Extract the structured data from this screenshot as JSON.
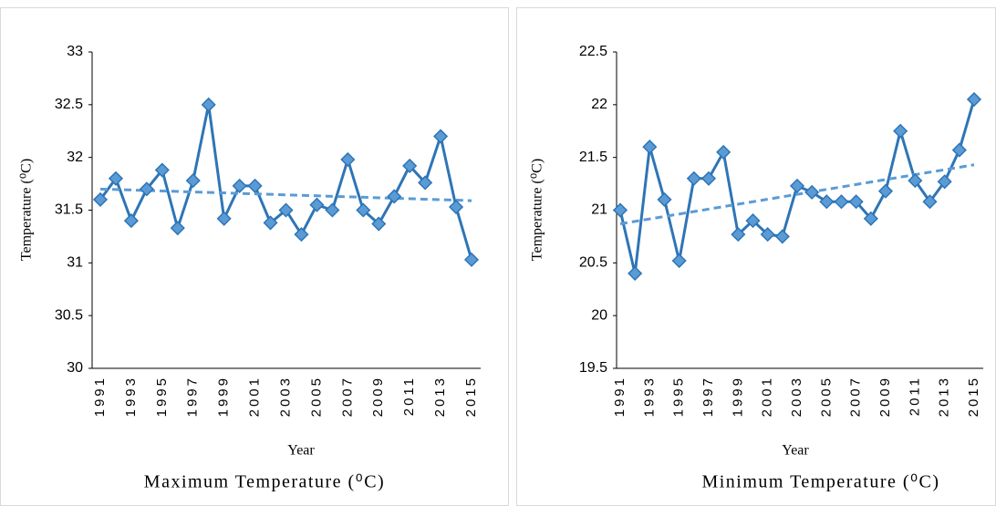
{
  "chart_data": [
    {
      "type": "line",
      "title": "Maximum Temperature (⁰C)",
      "x_label": "Year",
      "y_label": "Temperature (⁰C)",
      "categories": [
        "1991",
        null,
        "1993",
        null,
        "1995",
        null,
        "1997",
        null,
        "1999",
        null,
        "2001",
        null,
        "2003",
        null,
        "2005",
        null,
        "2007",
        null,
        "2009",
        null,
        "2011",
        null,
        "2013",
        null,
        "2015"
      ],
      "values": [
        31.6,
        31.8,
        31.4,
        31.7,
        31.88,
        31.33,
        31.78,
        32.5,
        31.42,
        31.73,
        31.73,
        31.38,
        31.5,
        31.27,
        31.55,
        31.5,
        31.98,
        31.5,
        31.37,
        31.63,
        31.92,
        31.76,
        32.2,
        31.53,
        31.03
      ],
      "color": "#2e75b6",
      "marker_color": "#5b9bd5",
      "trendline": [
        31.7,
        31.59
      ],
      "trendline_color": "#5b9bd5",
      "ylim": [
        30,
        33
      ],
      "yticks": [
        30,
        30.5,
        31,
        31.5,
        32,
        32.5,
        33
      ]
    },
    {
      "type": "line",
      "title": "Minimum Temperature (⁰C)",
      "x_label": "Year",
      "y_label": "Temperature (⁰C)",
      "categories": [
        "1991",
        null,
        "1993",
        null,
        "1995",
        null,
        "1997",
        null,
        "1999",
        null,
        "2001",
        null,
        "2003",
        null,
        "2005",
        null,
        "2007",
        null,
        "2009",
        null,
        "2011",
        null,
        "2013",
        null,
        "2015"
      ],
      "values": [
        21.0,
        20.4,
        21.6,
        21.1,
        20.52,
        21.3,
        21.3,
        21.55,
        20.77,
        20.9,
        20.77,
        20.75,
        21.23,
        21.17,
        21.08,
        21.08,
        21.08,
        20.92,
        21.18,
        21.75,
        21.28,
        21.08,
        21.27,
        21.57,
        22.05
      ],
      "color": "#2e75b6",
      "marker_color": "#5b9bd5",
      "trendline": [
        20.87,
        21.43
      ],
      "trendline_color": "#5b9bd5",
      "ylim": [
        19.5,
        22.5
      ],
      "yticks": [
        19.5,
        20,
        20.5,
        21,
        21.5,
        22,
        22.5
      ]
    }
  ]
}
